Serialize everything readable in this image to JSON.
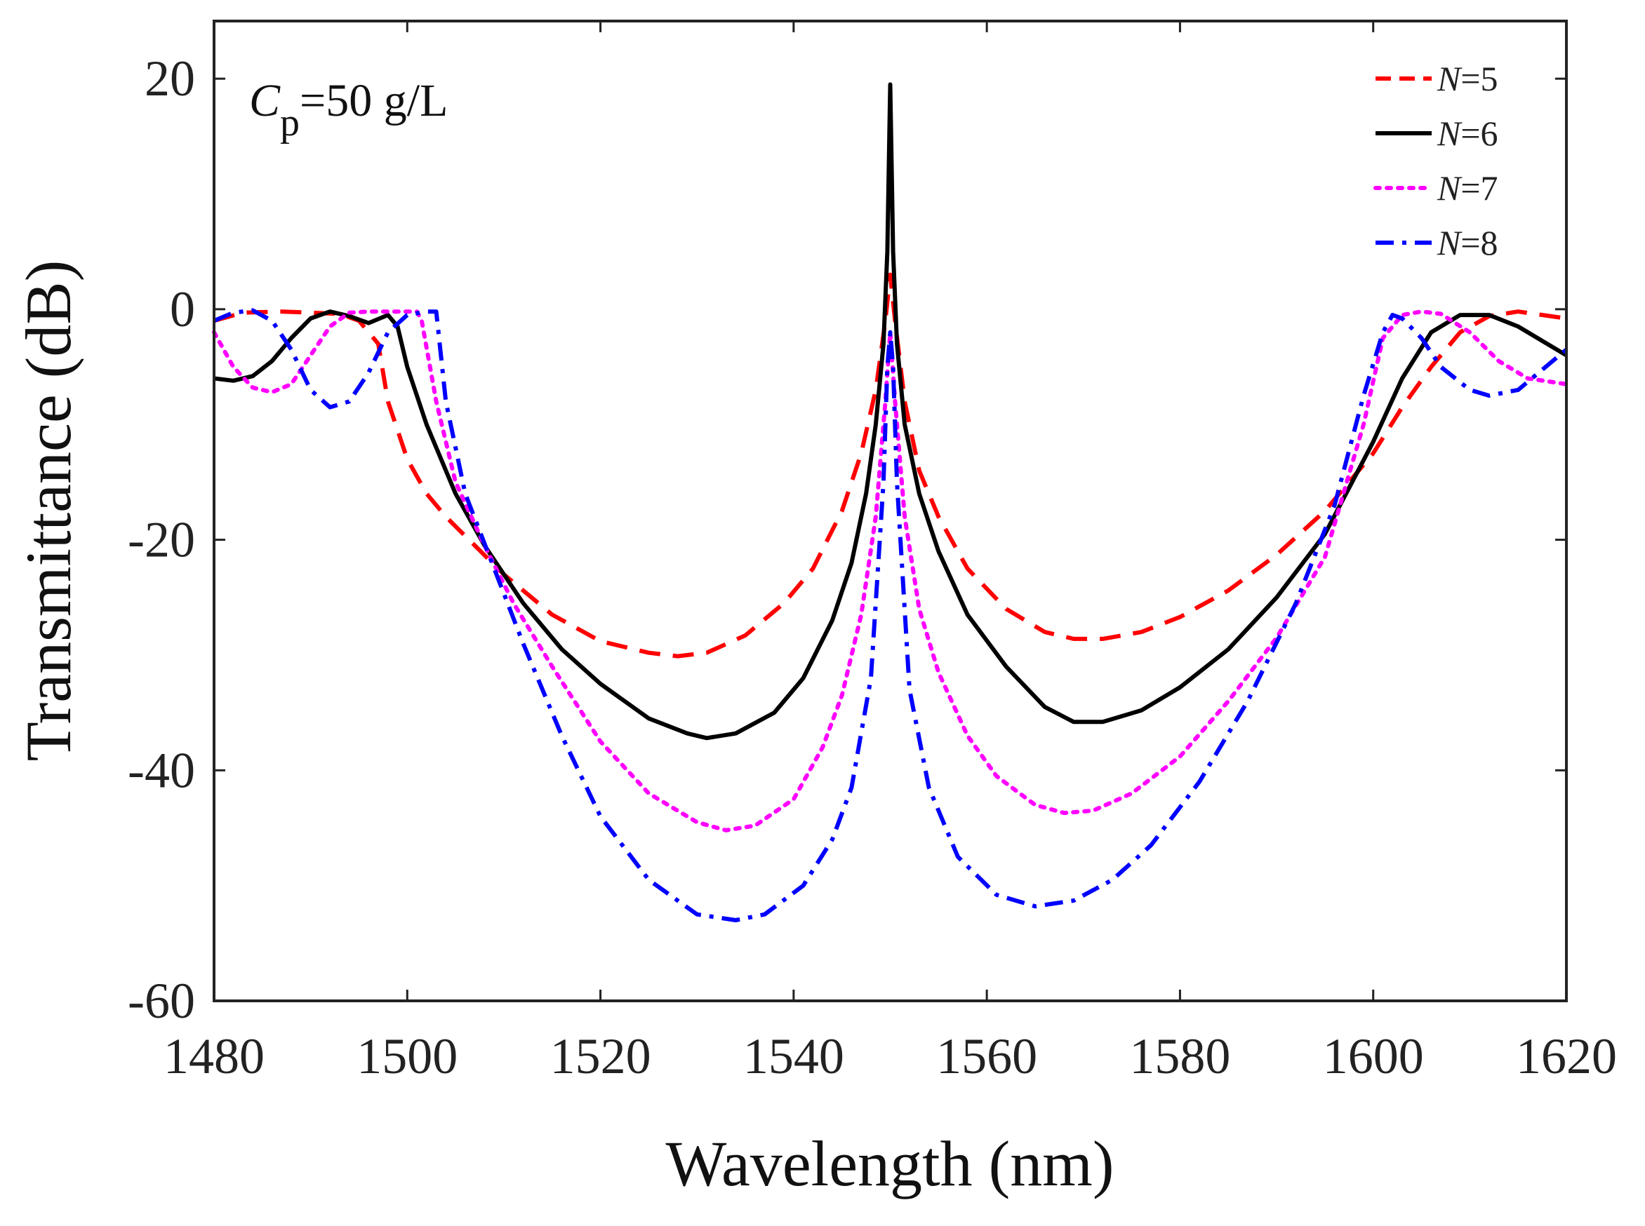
{
  "chart_data": {
    "type": "line",
    "title": "",
    "xlabel": "Wavelength (nm)",
    "ylabel": "Transmittance (dB)",
    "xlim": [
      1480,
      1620
    ],
    "ylim": [
      -60,
      25
    ],
    "xticks": [
      1480,
      1500,
      1520,
      1540,
      1560,
      1580,
      1600,
      1620
    ],
    "yticks": [
      -60,
      -40,
      -20,
      0,
      20
    ],
    "xtick_labels": [
      "1480",
      "1500",
      "1520",
      "1540",
      "1560",
      "1580",
      "1600",
      "1620"
    ],
    "ytick_labels": [
      "-60",
      "-40",
      "-20",
      "0",
      "20"
    ],
    "grid": false,
    "legend_position": "top-right",
    "annotation": {
      "symbol": "C",
      "subscript": "p",
      "rest": "=50 g/L"
    },
    "series": [
      {
        "name": "N=5",
        "label_var": "N",
        "label_val": "=5",
        "color": "#ff0000",
        "dash": "dashed",
        "x": [
          1480,
          1483,
          1487,
          1490,
          1493,
          1495,
          1497,
          1498,
          1500,
          1502,
          1504,
          1507,
          1510,
          1515,
          1520,
          1525,
          1528,
          1531,
          1535,
          1539,
          1542,
          1545,
          1547,
          1548.5,
          1549.5,
          1550,
          1550.5,
          1551.5,
          1553,
          1555,
          1558,
          1562,
          1566,
          1569,
          1572,
          1576,
          1580,
          1585,
          1590,
          1595,
          1600,
          1603,
          1606,
          1609,
          1612,
          1615,
          1620
        ],
        "y": [
          -1,
          -0.3,
          -0.2,
          -0.3,
          -0.4,
          -1,
          -3,
          -8,
          -13,
          -16,
          -18,
          -20.5,
          -23,
          -26.5,
          -28.8,
          -29.8,
          -30.1,
          -29.8,
          -28.3,
          -25.5,
          -22.5,
          -17.5,
          -12.5,
          -7,
          -1,
          3,
          -1,
          -8,
          -14,
          -18,
          -22.5,
          -26,
          -28,
          -28.6,
          -28.6,
          -28,
          -26.7,
          -24.4,
          -21.3,
          -17.5,
          -12.5,
          -8.5,
          -5,
          -2,
          -0.6,
          -0.2,
          -0.8
        ]
      },
      {
        "name": "N=6",
        "label_var": "N",
        "label_val": "=6",
        "color": "#000000",
        "dash": "solid",
        "x": [
          1480,
          1482,
          1484,
          1486,
          1488,
          1490,
          1492,
          1494,
          1496,
          1498,
          1499,
          1500,
          1502,
          1505,
          1508,
          1512,
          1516,
          1520,
          1525,
          1529,
          1531,
          1534,
          1538,
          1541,
          1544,
          1546,
          1547.5,
          1548.5,
          1549.3,
          1549.7,
          1550,
          1550.3,
          1550.7,
          1551.5,
          1553,
          1555,
          1558,
          1562,
          1566,
          1569,
          1572,
          1576,
          1580,
          1585,
          1590,
          1595,
          1600,
          1603,
          1606,
          1609,
          1612,
          1615,
          1620
        ],
        "y": [
          -6,
          -6.2,
          -5.8,
          -4.5,
          -2.5,
          -0.8,
          -0.2,
          -0.6,
          -1.2,
          -0.5,
          -1.5,
          -5,
          -10,
          -16,
          -20.5,
          -25.5,
          -29.5,
          -32.5,
          -35.5,
          -36.8,
          -37.2,
          -36.8,
          -35,
          -32,
          -27,
          -22,
          -16,
          -10,
          -3,
          5,
          19.5,
          5,
          -3,
          -10,
          -16,
          -21,
          -26.5,
          -31,
          -34.5,
          -35.8,
          -35.8,
          -34.8,
          -32.8,
          -29.5,
          -25,
          -19.5,
          -11.5,
          -6,
          -2,
          -0.5,
          -0.5,
          -1.5,
          -4
        ]
      },
      {
        "name": "N=7",
        "label_var": "N",
        "label_val": "=7",
        "color": "#ff00ff",
        "dash": "dotted",
        "x": [
          1480,
          1482,
          1484,
          1486,
          1488,
          1490,
          1492,
          1494,
          1496,
          1498,
          1500,
          1501,
          1501.5,
          1503,
          1505,
          1508,
          1511,
          1515,
          1520,
          1525,
          1530,
          1533,
          1536,
          1540,
          1543,
          1545,
          1547,
          1548.5,
          1549.5,
          1550,
          1550.5,
          1551.5,
          1553,
          1555,
          1558,
          1561,
          1565,
          1568,
          1571,
          1575,
          1580,
          1585,
          1590,
          1595,
          1599,
          1601,
          1603,
          1605,
          1607,
          1610,
          1613,
          1616,
          1620
        ],
        "y": [
          -2,
          -5,
          -6.8,
          -7.2,
          -6.5,
          -4,
          -1.5,
          -0.3,
          -0.2,
          -0.2,
          -0.2,
          -0.2,
          -1,
          -8,
          -15,
          -20.5,
          -25.5,
          -31,
          -37.5,
          -42,
          -44.5,
          -45.2,
          -44.8,
          -42.5,
          -38,
          -33.5,
          -26.5,
          -18,
          -8,
          -2,
          -8,
          -18,
          -26,
          -31.5,
          -37,
          -40.5,
          -43,
          -43.7,
          -43.5,
          -42,
          -38.8,
          -34,
          -28.5,
          -21.5,
          -10,
          -2.5,
          -0.5,
          -0.2,
          -0.4,
          -2,
          -4.5,
          -6,
          -6.5
        ]
      },
      {
        "name": "N=8",
        "label_var": "N",
        "label_val": "=8",
        "color": "#0000ff",
        "dash": "dashdot",
        "x": [
          1480,
          1482,
          1484,
          1486,
          1488,
          1490,
          1492,
          1494,
          1496,
          1498,
          1500,
          1502,
          1503,
          1504,
          1506,
          1509,
          1512,
          1516,
          1520,
          1525,
          1530,
          1534,
          1537,
          1541,
          1544,
          1546,
          1548,
          1549.3,
          1549.7,
          1550,
          1550.3,
          1550.7,
          1552,
          1554,
          1557,
          1561,
          1565,
          1569,
          1573,
          1577,
          1582,
          1587,
          1592,
          1596,
          1599,
          1601,
          1602,
          1603,
          1605,
          1607,
          1610,
          1612,
          1615,
          1620
        ],
        "y": [
          -1,
          -0.3,
          -0.1,
          -1,
          -3.5,
          -7,
          -8.5,
          -8,
          -5.5,
          -2,
          -0.5,
          -0.2,
          -0.2,
          -8,
          -16,
          -22.5,
          -29,
          -37,
          -44,
          -49.5,
          -52.5,
          -53,
          -52.5,
          -50,
          -46,
          -41.5,
          -32,
          -15,
          -5,
          -2,
          -5,
          -15,
          -33,
          -41.5,
          -47.5,
          -50.8,
          -51.8,
          -51.3,
          -49.5,
          -46.5,
          -41,
          -34,
          -25.5,
          -17,
          -7.5,
          -2,
          -0.5,
          -0.8,
          -2.5,
          -5,
          -7,
          -7.5,
          -7,
          -3.5
        ]
      }
    ]
  }
}
